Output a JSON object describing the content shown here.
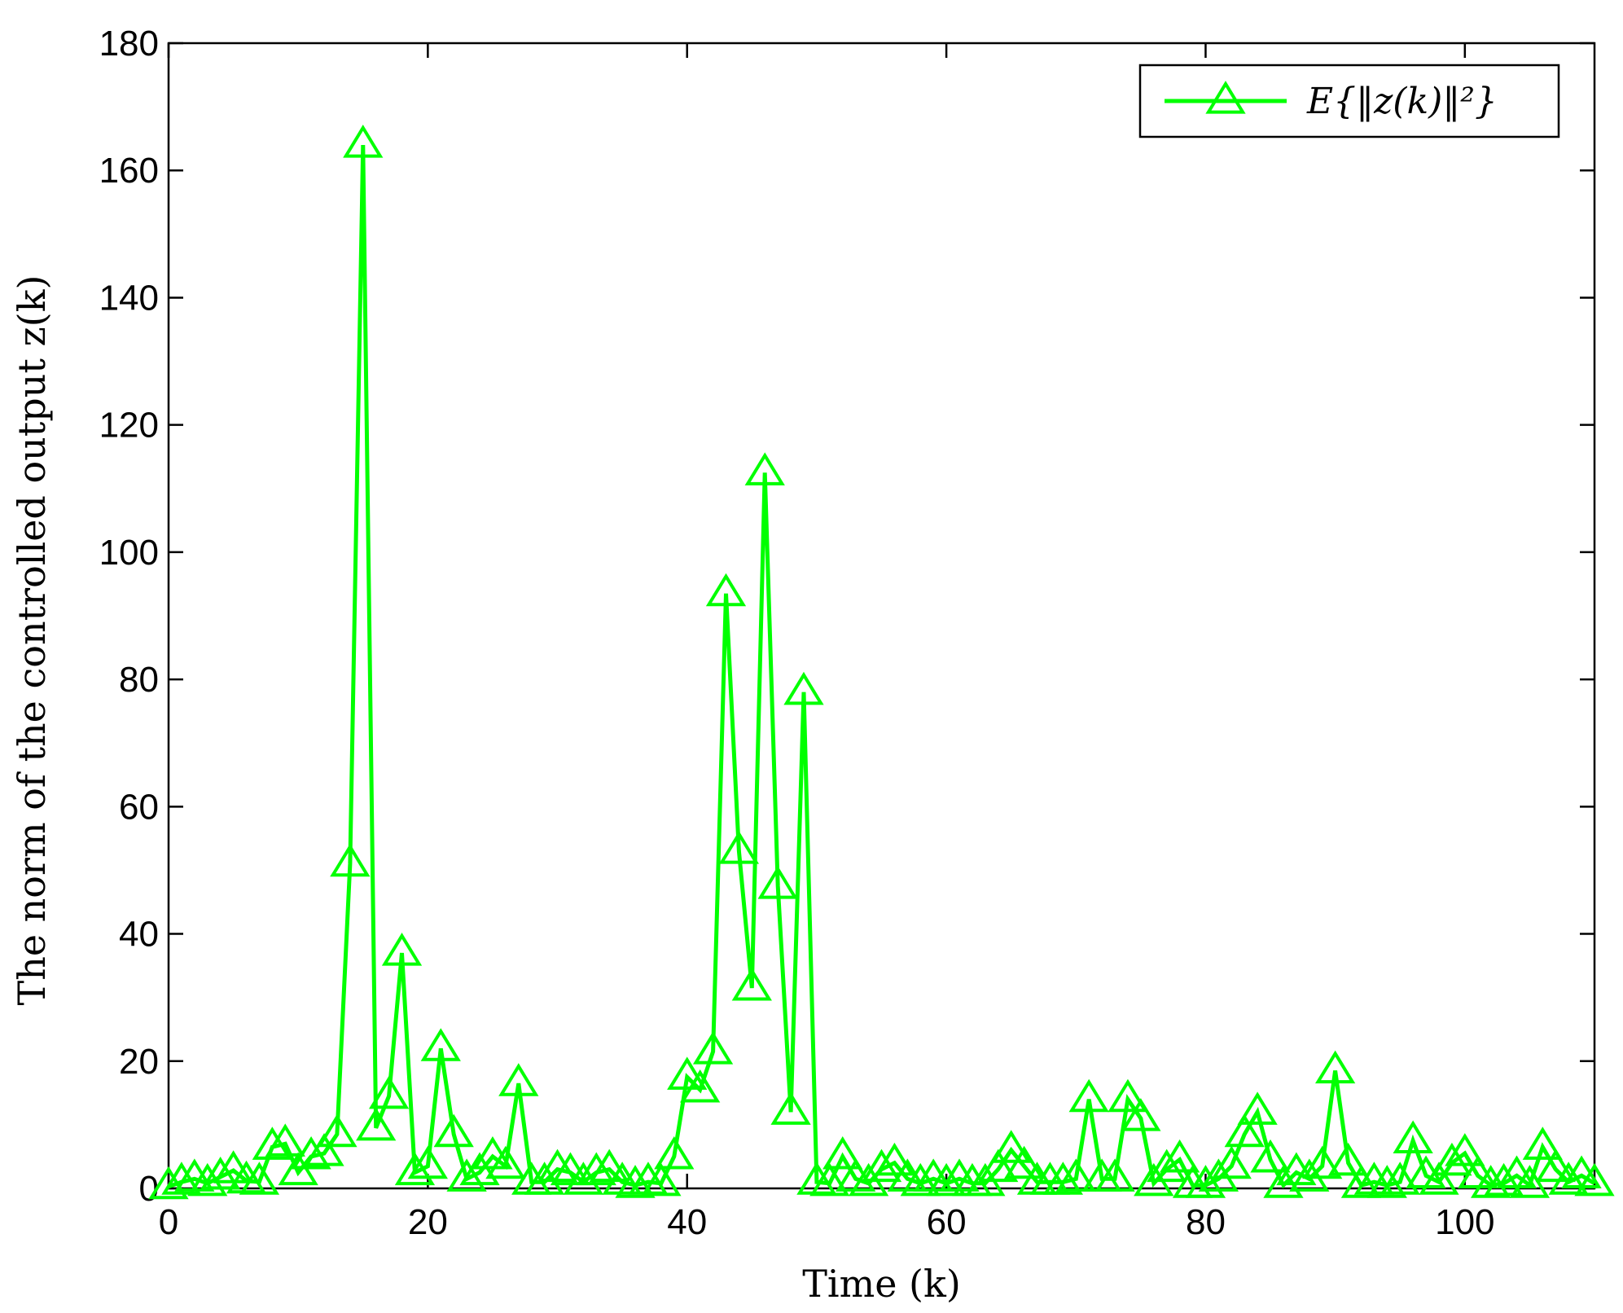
{
  "chart_data": {
    "type": "line",
    "xlabel": "Time (k)",
    "ylabel": "The norm of the controlled output z(k)",
    "xlim": [
      0,
      110
    ],
    "ylim": [
      0,
      180
    ],
    "xticks": [
      0,
      20,
      40,
      60,
      80,
      100
    ],
    "yticks": [
      0,
      20,
      40,
      60,
      80,
      100,
      120,
      140,
      160,
      180
    ],
    "grid": false,
    "legend_position": "top-right",
    "series": [
      {
        "name": "E{‖z(k)‖²}",
        "color": "#00ff00",
        "marker": "triangle",
        "x": [
          0,
          1,
          2,
          3,
          4,
          5,
          6,
          7,
          8,
          9,
          10,
          11,
          12,
          13,
          14,
          15,
          16,
          17,
          18,
          19,
          20,
          21,
          22,
          23,
          24,
          25,
          26,
          27,
          28,
          29,
          30,
          31,
          32,
          33,
          34,
          35,
          36,
          37,
          38,
          39,
          40,
          41,
          42,
          43,
          44,
          45,
          46,
          47,
          48,
          49,
          50,
          51,
          52,
          53,
          54,
          55,
          56,
          57,
          58,
          59,
          60,
          61,
          62,
          63,
          64,
          65,
          66,
          67,
          68,
          69,
          70,
          71,
          72,
          73,
          74,
          75,
          76,
          77,
          78,
          79,
          80,
          81,
          82,
          83,
          84,
          85,
          86,
          87,
          88,
          89,
          90,
          91,
          92,
          93,
          94,
          95,
          96,
          97,
          98,
          99,
          100,
          101,
          102,
          103,
          104,
          105,
          106,
          107,
          108,
          109,
          110
        ],
        "y": [
          0.3,
          1.0,
          1.5,
          0.8,
          1.8,
          2.8,
          1.2,
          1.0,
          6.5,
          7.0,
          2.5,
          5.0,
          5.5,
          8.5,
          51,
          164,
          9.5,
          14.5,
          37,
          2.5,
          3.5,
          22,
          8.5,
          1.5,
          2.5,
          5.0,
          3.5,
          16.5,
          1.0,
          1.0,
          3.0,
          2.5,
          1.0,
          2.5,
          3.0,
          1.0,
          0.5,
          1.0,
          0.8,
          5.0,
          17.5,
          15.5,
          21.5,
          93.5,
          53,
          31.5,
          112.5,
          47.5,
          12,
          78,
          1.0,
          0.8,
          5.0,
          1.5,
          0.8,
          3.0,
          4.0,
          1.5,
          0.8,
          1.5,
          0.8,
          1.5,
          0.8,
          0.8,
          3.0,
          6.0,
          3.5,
          1.0,
          1.0,
          1.0,
          1.5,
          14,
          1.5,
          1.5,
          14,
          11,
          0.8,
          3.0,
          4.5,
          0.5,
          0.5,
          1.5,
          3.5,
          8.5,
          12,
          4.5,
          0.5,
          2.5,
          1.5,
          3.5,
          18.5,
          4.0,
          0.5,
          1.0,
          0.5,
          1.0,
          7.5,
          2.0,
          1.0,
          4.0,
          5.5,
          2.0,
          0.5,
          0.8,
          2.0,
          0.5,
          6.5,
          3.0,
          1.0,
          2.0,
          0.8
        ]
      }
    ]
  }
}
